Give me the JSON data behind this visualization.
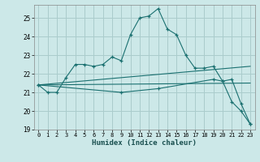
{
  "xlabel": "Humidex (Indice chaleur)",
  "background_color": "#cce8e8",
  "grid_color": "#aacccc",
  "line_color": "#1a7070",
  "xlim": [
    -0.5,
    23.5
  ],
  "ylim": [
    19,
    25.7
  ],
  "yticks": [
    19,
    20,
    21,
    22,
    23,
    24,
    25
  ],
  "xticks": [
    0,
    1,
    2,
    3,
    4,
    5,
    6,
    7,
    8,
    9,
    10,
    11,
    12,
    13,
    14,
    15,
    16,
    17,
    18,
    19,
    20,
    21,
    22,
    23
  ],
  "line1_x": [
    0,
    1,
    2,
    3,
    4,
    5,
    6,
    7,
    8,
    9,
    10,
    11,
    12,
    13,
    14,
    15,
    16,
    17,
    18,
    19,
    20,
    21,
    22,
    23
  ],
  "line1_y": [
    21.4,
    21.0,
    21.0,
    21.8,
    22.5,
    22.5,
    22.4,
    22.5,
    22.9,
    22.7,
    24.1,
    25.0,
    25.1,
    25.5,
    24.4,
    24.1,
    23.0,
    22.3,
    22.3,
    22.4,
    21.6,
    20.5,
    20.0,
    19.3
  ],
  "line2_x": [
    0,
    23
  ],
  "line2_y": [
    21.4,
    22.4
  ],
  "line3_x": [
    0,
    23
  ],
  "line3_y": [
    21.4,
    21.5
  ],
  "line4_x": [
    0,
    9,
    13,
    19,
    20,
    21,
    22,
    23
  ],
  "line4_y": [
    21.4,
    21.0,
    21.2,
    21.7,
    21.6,
    21.7,
    20.4,
    19.3
  ]
}
